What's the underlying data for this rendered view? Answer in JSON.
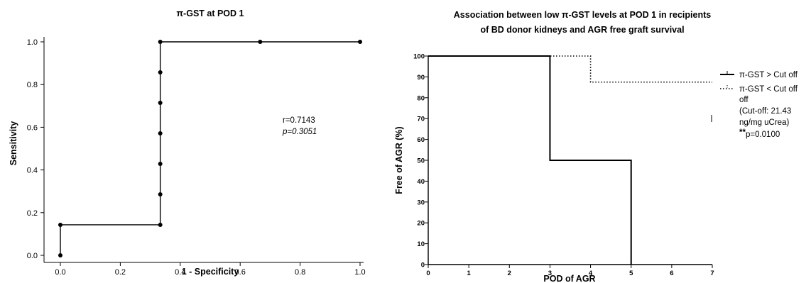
{
  "chart_data": [
    {
      "type": "line",
      "title": "π-GST at POD 1",
      "xlabel": "1 - Specificity",
      "ylabel": "Sensitivity",
      "xlim": [
        0,
        1
      ],
      "ylim": [
        0,
        1
      ],
      "xticks": [
        "0.0",
        "0.2",
        "0.4",
        "0.6",
        "0.8",
        "1.0"
      ],
      "yticks": [
        "0.0",
        "0.2",
        "0.4",
        "0.6",
        "0.8",
        "1.0"
      ],
      "points": [
        [
          0,
          0
        ],
        [
          0,
          0.1429
        ],
        [
          0.3333,
          0.1429
        ],
        [
          0.3333,
          0.2857
        ],
        [
          0.3333,
          0.4286
        ],
        [
          0.3333,
          0.5714
        ],
        [
          0.3333,
          0.7143
        ],
        [
          0.3333,
          0.8571
        ],
        [
          0.3333,
          1.0
        ],
        [
          0.6667,
          1.0
        ],
        [
          1.0,
          1.0
        ]
      ],
      "annotations": [
        "r=0.7143",
        "p=0.3051"
      ]
    },
    {
      "type": "line",
      "title": "Association between low π-GST levels at POD 1 in recipients of BD donor kidneys and AGR free graft survival",
      "title_lines": [
        "Association between low π-GST levels at POD 1 in recipients",
        "of BD donor kidneys and AGR free graft survival"
      ],
      "xlabel": "POD of AGR",
      "ylabel": "Free of AGR (%)",
      "xlim": [
        0,
        7
      ],
      "ylim": [
        0,
        100
      ],
      "xticks": [
        "0",
        "1",
        "2",
        "3",
        "4",
        "5",
        "6",
        "7"
      ],
      "yticks": [
        "0",
        "10",
        "20",
        "30",
        "40",
        "50",
        "60",
        "70",
        "80",
        "90",
        "100"
      ],
      "series": [
        {
          "name": "π-GST > Cut off",
          "style": "solid",
          "steps": [
            [
              0,
              100
            ],
            [
              3,
              100
            ],
            [
              3,
              50
            ],
            [
              5,
              50
            ],
            [
              5,
              0
            ]
          ]
        },
        {
          "name": "π-GST < Cut off",
          "style": "dotted",
          "steps": [
            [
              0,
              100
            ],
            [
              4,
              100
            ],
            [
              4,
              87.5
            ],
            [
              7,
              87.5
            ]
          ]
        }
      ],
      "legend_notes": [
        "off",
        "(Cut-off: 21.43",
        "ng/mg uCrea)"
      ],
      "significance": {
        "stars": "**",
        "text": "p=0.0100"
      }
    }
  ]
}
